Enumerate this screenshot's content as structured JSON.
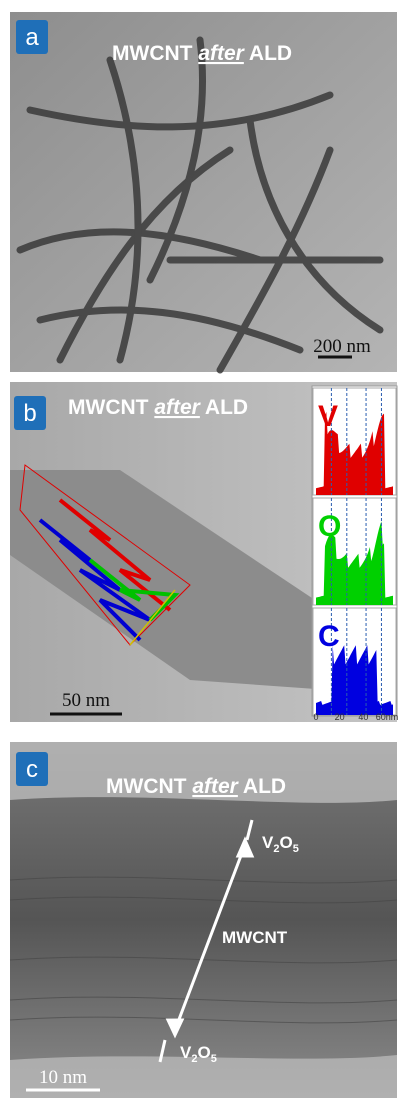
{
  "panels": [
    {
      "label": "a",
      "title": {
        "prefix": "MWCNT",
        "emphasis": "after",
        "suffix": "ALD"
      },
      "scale_bar": "200 nm"
    },
    {
      "label": "b",
      "title": {
        "prefix": "MWCNT",
        "emphasis": "after",
        "suffix": "ALD"
      },
      "scale_bar": "50 nm",
      "profiles": [
        {
          "element": "V",
          "color": "#e00000"
        },
        {
          "element": "O",
          "color": "#00d000"
        },
        {
          "element": "C",
          "color": "#0000e0"
        }
      ],
      "profile_axis": [
        "0",
        "20",
        "40",
        "60nm"
      ]
    },
    {
      "label": "c",
      "title": {
        "prefix": "MWCNT",
        "emphasis": "after",
        "suffix": "ALD"
      },
      "scale_bar": "10 nm",
      "annotations": [
        {
          "parts": [
            "V",
            "2",
            "O",
            "5"
          ]
        },
        {
          "text": "MWCNT"
        },
        {
          "parts": [
            "V",
            "2",
            "O",
            "5"
          ]
        }
      ]
    }
  ]
}
